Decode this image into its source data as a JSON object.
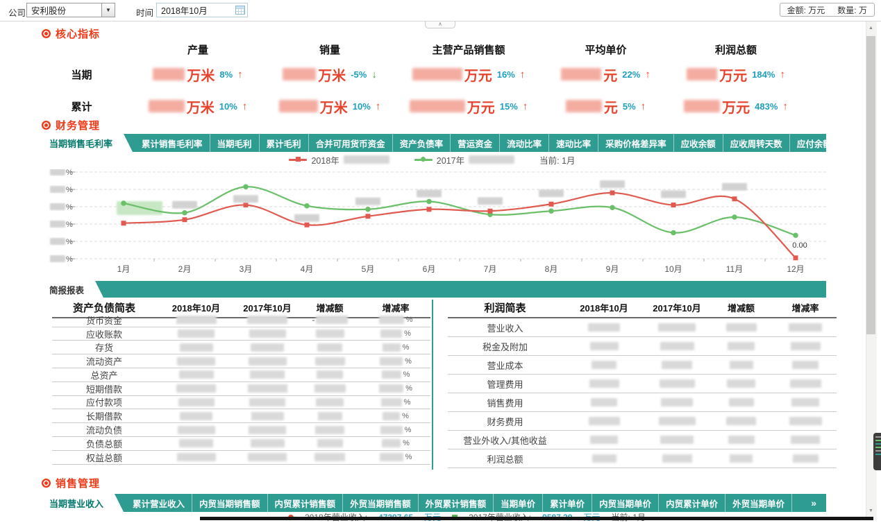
{
  "colors": {
    "teal": "#2f9c92",
    "accent_red": "#ee3a17",
    "value_red": "#e8432c",
    "pct_blue": "#1d9fc0",
    "up": "#e8432c",
    "down": "#43a047",
    "chart_red": "#e05a50",
    "chart_green": "#6abf69"
  },
  "icons": {
    "dropdown": "▼",
    "collapse": "∧",
    "more": "»",
    "up_arrow": "↑",
    "down_arrow": "↓",
    "scroll_up": "▲",
    "scroll_down": "▼"
  },
  "toolbar": {
    "company_label": "公司",
    "company_value": "安利股份",
    "time_label": "时间",
    "time_value": "2018年10月",
    "amount_label": "金额:",
    "amount_value": "万元",
    "qty_label": "数量:",
    "qty_value": "万"
  },
  "core": {
    "title": "核心指标",
    "row_labels": [
      "当期",
      "累计"
    ],
    "columns": [
      {
        "header": "产量",
        "cells": [
          {
            "unit": "万米",
            "pct": "8%",
            "dir": "up",
            "redact_w": 46
          },
          {
            "unit": "万米",
            "pct": "10%",
            "dir": "up",
            "redact_w": 52
          }
        ]
      },
      {
        "header": "销量",
        "cells": [
          {
            "unit": "万米",
            "pct": "-5%",
            "dir": "down",
            "redact_w": 48
          },
          {
            "unit": "万米",
            "pct": "10%",
            "dir": "up",
            "redact_w": 56
          }
        ]
      },
      {
        "header": "主营产品销售额",
        "cells": [
          {
            "unit": "万元",
            "pct": "16%",
            "dir": "up",
            "redact_w": 72
          },
          {
            "unit": "万元",
            "pct": "15%",
            "dir": "up",
            "redact_w": 80
          }
        ]
      },
      {
        "header": "平均单价",
        "cells": [
          {
            "unit": "元",
            "pct": "22%",
            "dir": "up",
            "redact_w": 58
          },
          {
            "unit": "元",
            "pct": "5%",
            "dir": "up",
            "redact_w": 52
          }
        ]
      },
      {
        "header": "利润总额",
        "cells": [
          {
            "unit": "万元",
            "pct": "184%",
            "dir": "up",
            "redact_w": 44
          },
          {
            "unit": "万元",
            "pct": "483%",
            "dir": "up",
            "redact_w": 52
          }
        ]
      }
    ],
    "values_redacted": true
  },
  "finance": {
    "title": "财务管理",
    "tabs": [
      "当期销售毛利率",
      "累计销售毛利率",
      "当期毛利",
      "累计毛利",
      "合并可用货币资金",
      "资产负债率",
      "营运资金",
      "流动比率",
      "速动比率",
      "采购价格差异率",
      "应收余额",
      "应收周转天数",
      "应付余额"
    ],
    "active_tab": 0,
    "legend": {
      "series": [
        {
          "name": "2018年",
          "marker": "square",
          "color": "#e05a50",
          "value_redacted": true
        },
        {
          "name": "2017年",
          "marker": "circle",
          "color": "#6abf69",
          "value_redacted": true
        }
      ],
      "current": "当前: 1月"
    }
  },
  "chart_data": {
    "type": "line",
    "x": [
      "1月",
      "2月",
      "3月",
      "4月",
      "5月",
      "6月",
      "7月",
      "8月",
      "9月",
      "10月",
      "11月",
      "12月"
    ],
    "y_axis": {
      "tick_count": 6,
      "tick_suffix": "%",
      "ticks_redacted": true,
      "note": "axis numbers blurred in source; values below are in gridline units 0-5 read from plot"
    },
    "grid": "dashed-horizontal",
    "legend_position": "top-center",
    "series": [
      {
        "name": "2018年",
        "color": "#e05a50",
        "marker": "square",
        "values": [
          2.05,
          2.25,
          3.1,
          1.95,
          2.45,
          2.85,
          2.75,
          3.15,
          3.8,
          3.1,
          3.45,
          0.05
        ]
      },
      {
        "name": "2017年",
        "color": "#6abf69",
        "marker": "circle",
        "values": [
          3.2,
          2.65,
          4.15,
          3.05,
          2.85,
          3.3,
          2.55,
          2.75,
          2.95,
          1.5,
          2.4,
          1.35
        ]
      }
    ],
    "annotations": [
      {
        "series": 0,
        "index": 11,
        "text": "0.00",
        "dx": 6,
        "dy": -15
      }
    ],
    "highlight": {
      "series": 1,
      "index": 0,
      "note": "current-month value highlight, text redacted"
    },
    "redacted_point_labels": [
      {
        "series": 1,
        "index": 1,
        "dy": -17
      },
      {
        "series": 1,
        "index": 2,
        "dy": 12
      },
      {
        "series": 1,
        "index": 3,
        "dy": 12
      },
      {
        "series": 1,
        "index": 4,
        "dy": -17
      },
      {
        "series": 1,
        "index": 5,
        "dy": -17
      },
      {
        "series": 0,
        "index": 6,
        "dy": -20
      },
      {
        "series": 0,
        "index": 7,
        "dy": -21
      },
      {
        "series": 0,
        "index": 8,
        "dy": -18
      },
      {
        "series": 0,
        "index": 9,
        "dy": -21
      },
      {
        "series": 0,
        "index": 10,
        "dy": -23
      }
    ]
  },
  "briefing": {
    "tab": "简报报表",
    "balance": {
      "title": "资产负债简表",
      "headers": [
        "2018年10月",
        "2017年10月",
        "增减额",
        "增减率"
      ],
      "rows": [
        {
          "label": "货币资金",
          "neg": true
        },
        {
          "label": "应收账款"
        },
        {
          "label": "存货"
        },
        {
          "label": "流动资产"
        },
        {
          "label": "总资产"
        },
        {
          "label": "短期借款"
        },
        {
          "label": "应付款项"
        },
        {
          "label": "长期借款"
        },
        {
          "label": "流动负债"
        },
        {
          "label": "负债总额"
        },
        {
          "label": "权益总额"
        }
      ],
      "values_redacted": true,
      "rate_suffix": "%"
    },
    "profit": {
      "title": "利润简表",
      "headers": [
        "2018年10月",
        "2017年10月",
        "增减额",
        "增减率"
      ],
      "rows": [
        {
          "label": "营业收入"
        },
        {
          "label": "税金及附加"
        },
        {
          "label": "营业成本"
        },
        {
          "label": "管理费用"
        },
        {
          "label": "销售费用"
        },
        {
          "label": "财务费用"
        },
        {
          "label": "营业外收入/其他收益"
        },
        {
          "label": "利润总额"
        }
      ],
      "values_redacted": true
    }
  },
  "sales": {
    "title": "销售管理",
    "tabs": [
      "当期营业收入",
      "累计营业收入",
      "内贸当期销售额",
      "内贸累计销售额",
      "外贸当期销售额",
      "外贸累计销售额",
      "当期单价",
      "累计单价",
      "内贸当期单价",
      "内贸累计单价",
      "外贸当期单价"
    ],
    "active_tab": 0,
    "legend": {
      "items": [
        {
          "marker": "dot",
          "color": "#e0483a",
          "label": "2018年营业收入:",
          "value": "47397.65",
          "unit": "万元"
        },
        {
          "marker": "square",
          "color": "#56b44c",
          "label": "2017年营业收入:",
          "value": "9587.29",
          "unit": "万元"
        }
      ],
      "current": "当前: 1月"
    }
  }
}
